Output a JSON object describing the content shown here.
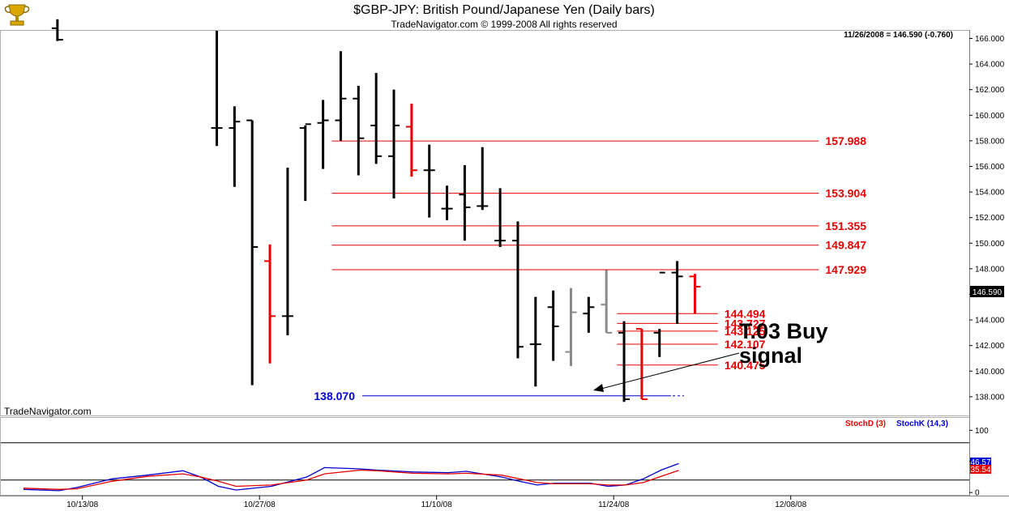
{
  "title": "$GBP-JPY:  British Pound/Japanese Yen  (Daily bars)",
  "copyright": "TradeNavigator.com © 1999-2008 All rights reserved",
  "watermark": "TradeNavigator.com",
  "price_readout": "11/26/2008 = 146.590 (-0.760)",
  "last_price_label": "146.590",
  "annotation": [
    "T.03 Buy",
    "signal"
  ],
  "legend": {
    "stoch_d": "StochD (3)",
    "stoch_k": "StochK (14,3)"
  },
  "stoch_readout": {
    "k": "46.57",
    "d": "35.54"
  },
  "colors": {
    "bar": "#000000",
    "bar_red": "#e60000",
    "bar_gray": "#8a8a8a",
    "resistance": "#e60000",
    "support": "#0000cc",
    "stoch_d": "#e60000",
    "stoch_k": "#0000cc"
  },
  "chart_data": {
    "type": "ohlc",
    "price_axis": {
      "min": 136.6,
      "max": 166.6,
      "ticks": [
        138,
        140,
        142,
        144,
        146,
        148,
        150,
        152,
        154,
        156,
        158,
        160,
        162,
        164,
        166
      ]
    },
    "stoch_axis": {
      "min": -5,
      "max": 120,
      "ticks": [
        0,
        50,
        100
      ],
      "reference_lines": [
        20,
        80
      ]
    },
    "date_ticks": [
      {
        "label": "10/13/08",
        "i": 2
      },
      {
        "label": "10/27/08",
        "i": 12
      },
      {
        "label": "11/10/08",
        "i": 22
      },
      {
        "label": "11/24/08",
        "i": 32
      },
      {
        "label": "12/08/08",
        "i": 42
      }
    ],
    "bars": [
      {
        "i": 1,
        "o": 166.8,
        "h": 167.5,
        "l": 165.8,
        "c": 165.9,
        "color": "black"
      },
      {
        "i": 10,
        "o": 159.0,
        "h": 166.6,
        "l": 157.6,
        "c": 159.0,
        "color": "black"
      },
      {
        "i": 11,
        "o": 159.0,
        "h": 160.7,
        "l": 154.4,
        "c": 159.5,
        "color": "black"
      },
      {
        "i": 12,
        "o": 159.6,
        "h": 159.6,
        "l": 138.9,
        "c": 149.7,
        "color": "black"
      },
      {
        "i": 13,
        "o": 148.6,
        "h": 149.9,
        "l": 140.6,
        "c": 144.3,
        "color": "red"
      },
      {
        "i": 14,
        "o": 144.3,
        "h": 155.9,
        "l": 142.8,
        "c": 144.3,
        "color": "black"
      },
      {
        "i": 15,
        "o": 159.0,
        "h": 159.2,
        "l": 153.3,
        "c": 159.3,
        "color": "black"
      },
      {
        "i": 16,
        "o": 159.4,
        "h": 161.2,
        "l": 155.8,
        "c": 159.6,
        "color": "black"
      },
      {
        "i": 17,
        "o": 159.6,
        "h": 165.0,
        "l": 158.0,
        "c": 161.3,
        "color": "black"
      },
      {
        "i": 18,
        "o": 161.3,
        "h": 162.3,
        "l": 155.3,
        "c": 158.2,
        "color": "black"
      },
      {
        "i": 19,
        "o": 159.2,
        "h": 163.3,
        "l": 156.2,
        "c": 156.8,
        "color": "black"
      },
      {
        "i": 20,
        "o": 156.8,
        "h": 162.0,
        "l": 153.5,
        "c": 159.2,
        "color": "black"
      },
      {
        "i": 21,
        "o": 159.1,
        "h": 160.9,
        "l": 155.2,
        "c": 155.7,
        "color": "red"
      },
      {
        "i": 22,
        "o": 155.7,
        "h": 157.7,
        "l": 152.0,
        "c": 155.7,
        "color": "black"
      },
      {
        "i": 23,
        "o": 152.7,
        "h": 154.5,
        "l": 151.8,
        "c": 152.7,
        "color": "black"
      },
      {
        "i": 24,
        "o": 153.8,
        "h": 156.1,
        "l": 150.2,
        "c": 152.8,
        "color": "black"
      },
      {
        "i": 25,
        "o": 152.9,
        "h": 157.5,
        "l": 152.6,
        "c": 152.9,
        "color": "black"
      },
      {
        "i": 26,
        "o": 150.2,
        "h": 154.3,
        "l": 149.7,
        "c": 150.2,
        "color": "black"
      },
      {
        "i": 27,
        "o": 150.2,
        "h": 151.7,
        "l": 141.0,
        "c": 141.9,
        "color": "black"
      },
      {
        "i": 28,
        "o": 142.1,
        "h": 145.8,
        "l": 138.8,
        "c": 142.1,
        "color": "black"
      },
      {
        "i": 29,
        "o": 145.0,
        "h": 146.3,
        "l": 140.8,
        "c": 143.5,
        "color": "black"
      },
      {
        "i": 30,
        "o": 141.5,
        "h": 146.5,
        "l": 140.4,
        "c": 144.6,
        "color": "gray"
      },
      {
        "i": 31,
        "o": 144.5,
        "h": 145.8,
        "l": 143.0,
        "c": 145.0,
        "color": "black"
      },
      {
        "i": 32,
        "o": 145.2,
        "h": 147.9,
        "l": 143.0,
        "c": 143.0,
        "color": "gray"
      },
      {
        "i": 33,
        "o": 143.0,
        "h": 143.9,
        "l": 137.6,
        "c": 137.8,
        "color": "black"
      },
      {
        "i": 34,
        "o": 143.3,
        "h": 143.3,
        "l": 137.8,
        "c": 137.8,
        "color": "red"
      },
      {
        "i": 35,
        "o": 143.0,
        "h": 143.3,
        "l": 141.1,
        "c": 147.7,
        "color": "black"
      },
      {
        "i": 36,
        "o": 147.7,
        "h": 148.6,
        "l": 143.7,
        "c": 147.4,
        "color": "black"
      },
      {
        "i": 37,
        "o": 147.4,
        "h": 147.6,
        "l": 144.5,
        "c": 146.6,
        "color": "red"
      }
    ],
    "levels": [
      {
        "value": 157.988,
        "label": "157.988",
        "color": "red",
        "from_i": 16.5,
        "to_i": 44
      },
      {
        "value": 153.904,
        "label": "153.904",
        "color": "red",
        "from_i": 16.5,
        "to_i": 44
      },
      {
        "value": 151.355,
        "label": "151.355",
        "color": "red",
        "from_i": 16.5,
        "to_i": 44
      },
      {
        "value": 149.847,
        "label": "149.847",
        "color": "red",
        "from_i": 16.5,
        "to_i": 44
      },
      {
        "value": 147.929,
        "label": "147.929",
        "color": "red",
        "from_i": 16.5,
        "to_i": 44
      },
      {
        "value": 144.494,
        "label": "144.494",
        "color": "red",
        "from_i": 32.6,
        "to_i": 38.3
      },
      {
        "value": 143.727,
        "label": "143.727",
        "color": "red",
        "from_i": 32.6,
        "to_i": 38.3
      },
      {
        "value": 143.125,
        "label": "143.125",
        "color": "red",
        "from_i": 32.6,
        "to_i": 38.3
      },
      {
        "value": 142.107,
        "label": "142.107",
        "color": "red",
        "from_i": 32.6,
        "to_i": 38.3
      },
      {
        "value": 140.475,
        "label": "140.475",
        "color": "red",
        "from_i": 32.6,
        "to_i": 38.3
      },
      {
        "value": 138.07,
        "label": "138.070",
        "color": "blue",
        "from_i": 20.1,
        "to_i": 39
      }
    ],
    "stoch_k": [
      [
        0,
        5
      ],
      [
        2,
        3
      ],
      [
        3,
        8
      ],
      [
        5,
        22
      ],
      [
        7,
        28
      ],
      [
        9,
        35
      ],
      [
        10,
        25
      ],
      [
        11,
        10
      ],
      [
        12,
        4
      ],
      [
        14,
        10
      ],
      [
        16,
        25
      ],
      [
        17,
        40
      ],
      [
        19,
        38
      ],
      [
        20,
        36
      ],
      [
        22,
        33
      ],
      [
        24,
        32
      ],
      [
        25,
        34
      ],
      [
        27,
        25
      ],
      [
        28,
        18
      ],
      [
        29,
        12
      ],
      [
        30,
        15
      ],
      [
        32,
        15
      ],
      [
        33,
        10
      ],
      [
        34,
        12
      ],
      [
        35,
        22
      ],
      [
        36,
        36
      ],
      [
        37,
        46.57
      ]
    ],
    "stoch_d": [
      [
        0,
        7
      ],
      [
        2,
        5
      ],
      [
        3,
        6
      ],
      [
        5,
        18
      ],
      [
        7,
        26
      ],
      [
        9,
        30
      ],
      [
        10,
        25
      ],
      [
        11,
        18
      ],
      [
        12,
        10
      ],
      [
        14,
        12
      ],
      [
        16,
        20
      ],
      [
        17,
        30
      ],
      [
        19,
        36
      ],
      [
        20,
        35
      ],
      [
        22,
        31
      ],
      [
        24,
        30
      ],
      [
        25,
        31
      ],
      [
        27,
        28
      ],
      [
        28,
        22
      ],
      [
        29,
        16
      ],
      [
        30,
        14
      ],
      [
        32,
        14
      ],
      [
        33,
        12
      ],
      [
        34,
        12
      ],
      [
        35,
        16
      ],
      [
        36,
        26
      ],
      [
        37,
        35.54
      ]
    ]
  }
}
